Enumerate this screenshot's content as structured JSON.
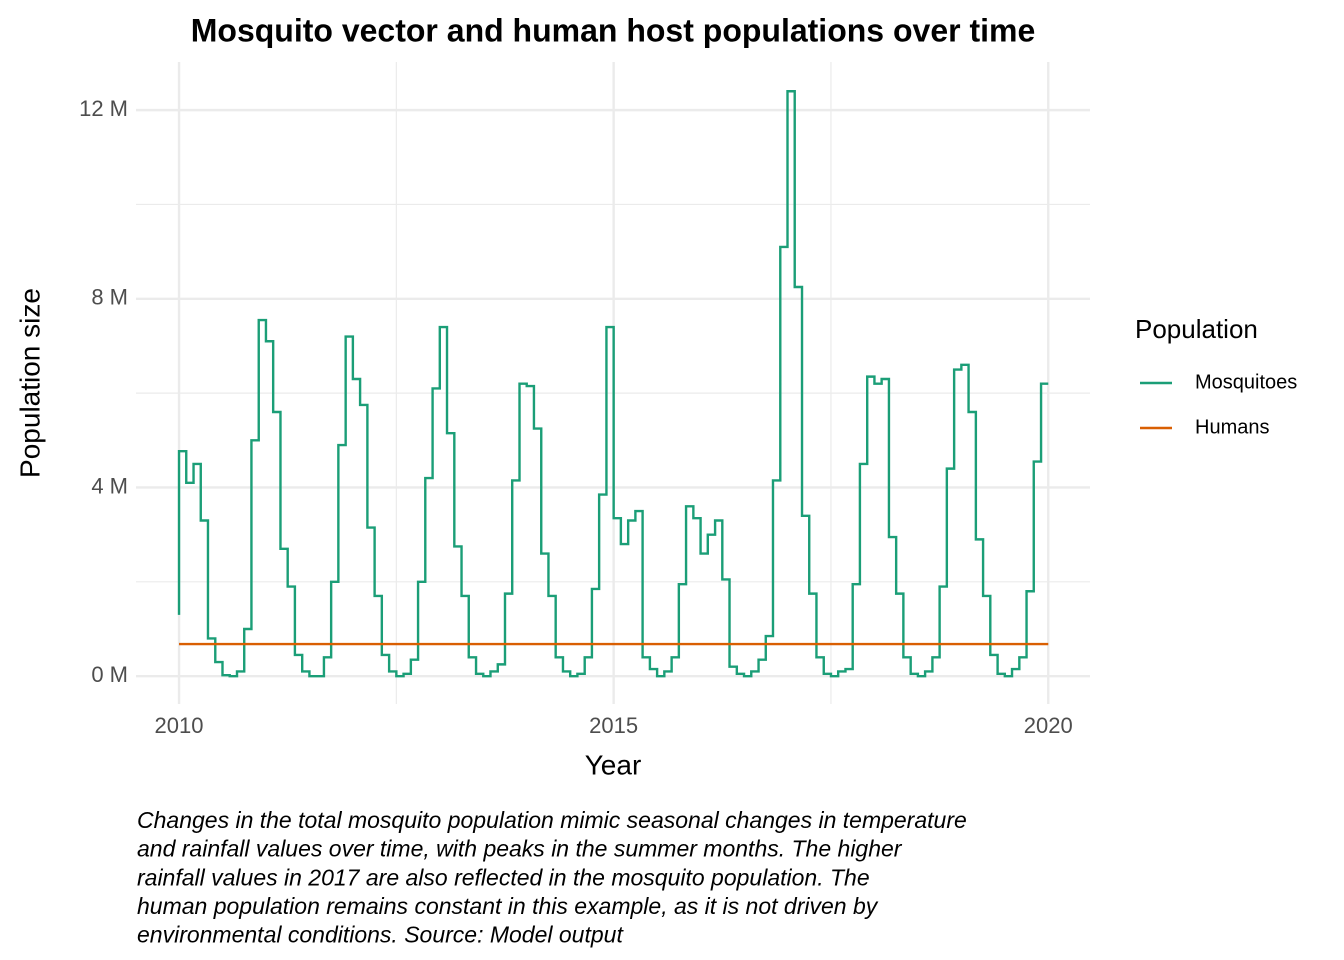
{
  "chart_data": {
    "type": "line",
    "step": true,
    "title": "Mosquito vector and human host populations over time",
    "x_label": "Year",
    "y_label": "Population size",
    "legend_title": "Population",
    "legend_position": "right",
    "grid": true,
    "caption": [
      "Changes in the total mosquito population mimic seasonal changes in temperature",
      "and rainfall values over time, with peaks in the summer months. The higher",
      "rainfall values in 2017 are also reflected in the mosquito population. The",
      "human population remains constant in this example, as it is not driven by",
      "environmental conditions. Source: Model output"
    ],
    "xlim": [
      2009.505,
      2020.48
    ],
    "xticks": [
      2010,
      2015,
      2020
    ],
    "xminor": [
      2012.5,
      2017.5
    ],
    "ylim": [
      -0.59,
      13.02
    ],
    "yticks": [
      {
        "value": 0,
        "label": "0 M"
      },
      {
        "value": 4,
        "label": "4 M"
      },
      {
        "value": 8,
        "label": "8 M"
      },
      {
        "value": 12,
        "label": "12 M"
      }
    ],
    "yminor": [
      2,
      6,
      10
    ],
    "series": [
      {
        "name": "Mosquitoes",
        "color": "#1b9e77",
        "x": [
          2010.0,
          2010.083,
          2010.167,
          2010.25,
          2010.333,
          2010.417,
          2010.5,
          2010.583,
          2010.667,
          2010.75,
          2010.833,
          2010.917,
          2011.0,
          2011.083,
          2011.167,
          2011.25,
          2011.333,
          2011.417,
          2011.5,
          2011.583,
          2011.667,
          2011.75,
          2011.833,
          2011.917,
          2012.0,
          2012.083,
          2012.167,
          2012.25,
          2012.333,
          2012.417,
          2012.5,
          2012.583,
          2012.667,
          2012.75,
          2012.833,
          2012.917,
          2013.0,
          2013.083,
          2013.167,
          2013.25,
          2013.333,
          2013.417,
          2013.5,
          2013.583,
          2013.667,
          2013.75,
          2013.833,
          2013.917,
          2014.0,
          2014.083,
          2014.167,
          2014.25,
          2014.333,
          2014.417,
          2014.5,
          2014.583,
          2014.667,
          2014.75,
          2014.833,
          2014.917,
          2015.0,
          2015.083,
          2015.167,
          2015.25,
          2015.333,
          2015.417,
          2015.5,
          2015.583,
          2015.667,
          2015.75,
          2015.833,
          2015.917,
          2016.0,
          2016.083,
          2016.167,
          2016.25,
          2016.333,
          2016.417,
          2016.5,
          2016.583,
          2016.667,
          2016.75,
          2016.833,
          2016.917,
          2017.0,
          2017.083,
          2017.167,
          2017.25,
          2017.333,
          2017.417,
          2017.5,
          2017.583,
          2017.667,
          2017.75,
          2017.833,
          2017.917,
          2018.0,
          2018.083,
          2018.167,
          2018.25,
          2018.333,
          2018.417,
          2018.5,
          2018.583,
          2018.667,
          2018.75,
          2018.833,
          2018.917,
          2019.0,
          2019.083,
          2019.167,
          2019.25,
          2019.333,
          2019.417,
          2019.5,
          2019.583,
          2019.667,
          2019.75,
          2019.833,
          2019.917,
          2020.0
        ],
        "values": [
          1.3,
          4.77,
          4.1,
          4.5,
          3.3,
          0.8,
          0.3,
          0.02,
          0.0,
          0.1,
          1.0,
          5.0,
          7.55,
          7.1,
          5.6,
          2.7,
          1.9,
          0.45,
          0.1,
          0.0,
          0.0,
          0.4,
          2.0,
          4.9,
          7.2,
          6.3,
          5.75,
          3.15,
          1.7,
          0.45,
          0.1,
          0.0,
          0.05,
          0.35,
          2.0,
          4.2,
          6.1,
          7.4,
          5.15,
          2.75,
          1.7,
          0.4,
          0.05,
          0.0,
          0.1,
          0.25,
          1.75,
          4.15,
          6.2,
          6.15,
          5.25,
          2.6,
          1.7,
          0.4,
          0.1,
          0.0,
          0.05,
          0.4,
          1.85,
          3.85,
          7.4,
          3.35,
          2.8,
          3.3,
          3.5,
          0.4,
          0.15,
          0.0,
          0.1,
          0.4,
          1.95,
          3.6,
          3.35,
          2.6,
          3.0,
          3.3,
          2.05,
          0.2,
          0.05,
          0.0,
          0.1,
          0.35,
          0.85,
          4.15,
          9.1,
          12.4,
          8.25,
          3.4,
          1.75,
          0.4,
          0.05,
          0.0,
          0.1,
          0.15,
          1.95,
          4.5,
          6.35,
          6.2,
          6.3,
          2.95,
          1.75,
          0.4,
          0.05,
          0.0,
          0.1,
          0.4,
          1.9,
          4.4,
          6.5,
          6.6,
          5.6,
          2.9,
          1.7,
          0.45,
          0.05,
          0.0,
          0.15,
          0.4,
          1.8,
          4.55,
          6.2
        ]
      },
      {
        "name": "Humans",
        "color": "#d95f02",
        "x": [
          2010,
          2020
        ],
        "values": [
          0.68,
          0.68
        ]
      }
    ]
  }
}
